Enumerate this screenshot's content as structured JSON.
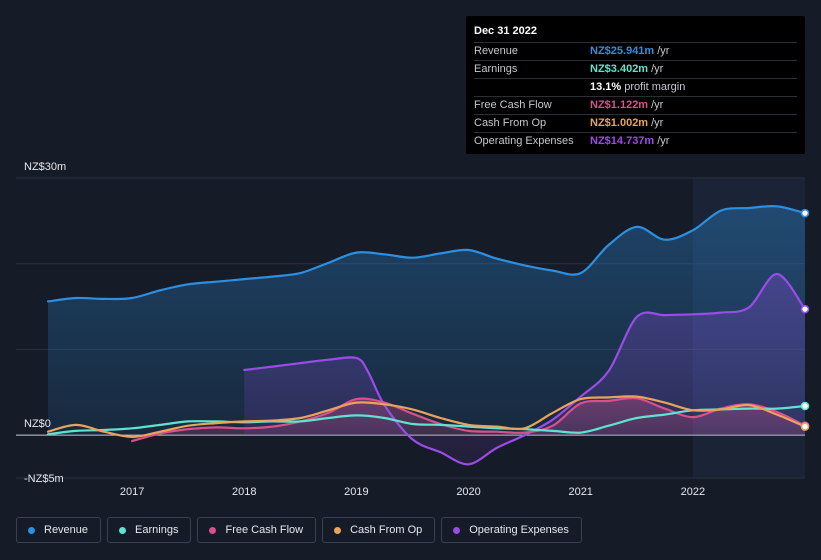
{
  "tooltip": {
    "date": "Dec 31 2022",
    "rows": [
      {
        "label": "Revenue",
        "value": "NZ$25.941m",
        "unit": "/yr",
        "color": "#2e8fe0"
      },
      {
        "label": "Earnings",
        "value": "NZ$3.402m",
        "unit": "/yr",
        "color": "#5fe3d0"
      },
      {
        "label": "",
        "value": "13.1%",
        "unit": "profit margin",
        "color": "#ffffff"
      },
      {
        "label": "Free Cash Flow",
        "value": "NZ$1.122m",
        "unit": "/yr",
        "color": "#d9508a"
      },
      {
        "label": "Cash From Op",
        "value": "NZ$1.002m",
        "unit": "/yr",
        "color": "#e9a35a"
      },
      {
        "label": "Operating Expenses",
        "value": "NZ$14.737m",
        "unit": "/yr",
        "color": "#9a4ce6"
      }
    ]
  },
  "legend": [
    {
      "label": "Revenue",
      "color": "#2e8fe0"
    },
    {
      "label": "Earnings",
      "color": "#5fe3d0"
    },
    {
      "label": "Free Cash Flow",
      "color": "#d9508a"
    },
    {
      "label": "Cash From Op",
      "color": "#e9a35a"
    },
    {
      "label": "Operating Expenses",
      "color": "#9a4ce6"
    }
  ],
  "chart_data": {
    "type": "area",
    "y_axis_labels": [
      "NZ$30m",
      "NZ$0",
      "-NZ$5m"
    ],
    "ylim": [
      -5,
      30
    ],
    "xlim": [
      2016.25,
      2023.0
    ],
    "x_ticks": [
      2017,
      2018,
      2019,
      2020,
      2021,
      2022
    ],
    "x_tick_labels": [
      "2017",
      "2018",
      "2019",
      "2020",
      "2021",
      "2022"
    ],
    "highlight_start": 2022.0,
    "grid": true,
    "series": [
      {
        "name": "Revenue",
        "color": "#2e8fe0",
        "fill": true,
        "points": [
          [
            2016.25,
            15.6
          ],
          [
            2016.5,
            16.0
          ],
          [
            2016.75,
            15.9
          ],
          [
            2017.0,
            16.0
          ],
          [
            2017.25,
            16.9
          ],
          [
            2017.5,
            17.6
          ],
          [
            2017.75,
            17.9
          ],
          [
            2018.0,
            18.2
          ],
          [
            2018.25,
            18.5
          ],
          [
            2018.5,
            18.9
          ],
          [
            2018.75,
            20.1
          ],
          [
            2019.0,
            21.3
          ],
          [
            2019.25,
            21.1
          ],
          [
            2019.5,
            20.7
          ],
          [
            2019.75,
            21.2
          ],
          [
            2020.0,
            21.6
          ],
          [
            2020.25,
            20.6
          ],
          [
            2020.5,
            19.8
          ],
          [
            2020.75,
            19.2
          ],
          [
            2021.0,
            18.9
          ],
          [
            2021.25,
            22.2
          ],
          [
            2021.5,
            24.3
          ],
          [
            2021.75,
            22.8
          ],
          [
            2022.0,
            23.9
          ],
          [
            2022.25,
            26.2
          ],
          [
            2022.5,
            26.5
          ],
          [
            2022.75,
            26.7
          ],
          [
            2023.0,
            25.9
          ]
        ]
      },
      {
        "name": "Earnings",
        "color": "#5fe3d0",
        "fill": false,
        "points": [
          [
            2016.25,
            0.1
          ],
          [
            2016.5,
            0.5
          ],
          [
            2016.75,
            0.6
          ],
          [
            2017.0,
            0.8
          ],
          [
            2017.25,
            1.2
          ],
          [
            2017.5,
            1.6
          ],
          [
            2017.75,
            1.6
          ],
          [
            2018.0,
            1.5
          ],
          [
            2018.25,
            1.6
          ],
          [
            2018.5,
            1.6
          ],
          [
            2018.75,
            2.0
          ],
          [
            2019.0,
            2.3
          ],
          [
            2019.25,
            2.0
          ],
          [
            2019.5,
            1.3
          ],
          [
            2019.75,
            1.2
          ],
          [
            2020.0,
            1.0
          ],
          [
            2020.25,
            0.8
          ],
          [
            2020.5,
            0.7
          ],
          [
            2020.75,
            0.5
          ],
          [
            2021.0,
            0.3
          ],
          [
            2021.25,
            1.1
          ],
          [
            2021.5,
            2.0
          ],
          [
            2021.75,
            2.4
          ],
          [
            2022.0,
            2.9
          ],
          [
            2022.25,
            3.0
          ],
          [
            2022.5,
            3.1
          ],
          [
            2022.75,
            3.1
          ],
          [
            2023.0,
            3.4
          ]
        ]
      },
      {
        "name": "Free Cash Flow",
        "color": "#d9508a",
        "fill": true,
        "points": [
          [
            2017.0,
            -0.7
          ],
          [
            2017.25,
            0.2
          ],
          [
            2017.5,
            0.7
          ],
          [
            2017.75,
            0.9
          ],
          [
            2018.0,
            0.8
          ],
          [
            2018.25,
            1.0
          ],
          [
            2018.5,
            1.6
          ],
          [
            2018.75,
            2.6
          ],
          [
            2019.0,
            4.2
          ],
          [
            2019.25,
            3.8
          ],
          [
            2019.5,
            2.5
          ],
          [
            2019.75,
            1.3
          ],
          [
            2020.0,
            0.5
          ],
          [
            2020.25,
            0.4
          ],
          [
            2020.5,
            0.3
          ],
          [
            2020.75,
            1.1
          ],
          [
            2021.0,
            3.7
          ],
          [
            2021.25,
            4.0
          ],
          [
            2021.5,
            4.3
          ],
          [
            2021.75,
            3.1
          ],
          [
            2022.0,
            2.1
          ],
          [
            2022.25,
            3.1
          ],
          [
            2022.5,
            3.6
          ],
          [
            2022.75,
            2.7
          ],
          [
            2023.0,
            1.1
          ]
        ]
      },
      {
        "name": "Cash From Op",
        "color": "#e9a35a",
        "fill": false,
        "points": [
          [
            2016.25,
            0.4
          ],
          [
            2016.5,
            1.2
          ],
          [
            2016.75,
            0.4
          ],
          [
            2017.0,
            -0.2
          ],
          [
            2017.25,
            0.4
          ],
          [
            2017.5,
            1.1
          ],
          [
            2017.75,
            1.4
          ],
          [
            2018.0,
            1.6
          ],
          [
            2018.25,
            1.7
          ],
          [
            2018.5,
            2.0
          ],
          [
            2018.75,
            2.9
          ],
          [
            2019.0,
            3.8
          ],
          [
            2019.25,
            3.6
          ],
          [
            2019.5,
            3.0
          ],
          [
            2019.75,
            2.0
          ],
          [
            2020.0,
            1.2
          ],
          [
            2020.25,
            1.0
          ],
          [
            2020.5,
            0.8
          ],
          [
            2020.75,
            2.6
          ],
          [
            2021.0,
            4.2
          ],
          [
            2021.25,
            4.4
          ],
          [
            2021.5,
            4.5
          ],
          [
            2021.75,
            3.8
          ],
          [
            2022.0,
            2.9
          ],
          [
            2022.25,
            3.0
          ],
          [
            2022.5,
            3.5
          ],
          [
            2022.75,
            2.4
          ],
          [
            2023.0,
            1.0
          ]
        ]
      },
      {
        "name": "Operating Expenses",
        "color": "#9a4ce6",
        "fill": true,
        "points": [
          [
            2018.0,
            7.6
          ],
          [
            2018.25,
            8.0
          ],
          [
            2018.5,
            8.4
          ],
          [
            2018.75,
            8.8
          ],
          [
            2019.0,
            9.0
          ],
          [
            2019.1,
            7.5
          ],
          [
            2019.25,
            3.5
          ],
          [
            2019.5,
            -0.5
          ],
          [
            2019.75,
            -2.0
          ],
          [
            2020.0,
            -3.4
          ],
          [
            2020.25,
            -1.5
          ],
          [
            2020.5,
            0.0
          ],
          [
            2020.75,
            1.8
          ],
          [
            2021.0,
            4.5
          ],
          [
            2021.25,
            7.5
          ],
          [
            2021.5,
            13.8
          ],
          [
            2021.75,
            14.0
          ],
          [
            2022.0,
            14.1
          ],
          [
            2022.25,
            14.3
          ],
          [
            2022.5,
            14.9
          ],
          [
            2022.75,
            18.8
          ],
          [
            2023.0,
            14.7
          ]
        ]
      }
    ]
  }
}
